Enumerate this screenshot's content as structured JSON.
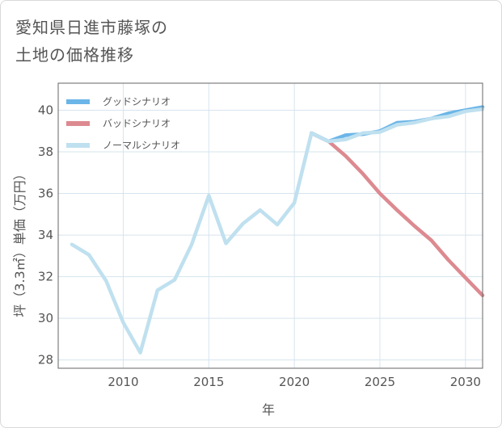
{
  "title_lines": [
    "愛知県日進市藤塚の",
    "土地の価格推移"
  ],
  "chart_data": {
    "type": "line",
    "xlabel": "年",
    "ylabel": "坪（3.3㎡）単価（万円）",
    "xlim": [
      2006.2,
      2031
    ],
    "ylim": [
      27.6,
      41.3
    ],
    "xticks": [
      2010,
      2015,
      2020,
      2025,
      2030
    ],
    "yticks": [
      28,
      30,
      32,
      34,
      36,
      38,
      40
    ],
    "legend_position": "top-left",
    "series": [
      {
        "name": "グッドシナリオ",
        "color": "#6bb5e8",
        "x": [
          2021,
          2022,
          2023,
          2024,
          2025,
          2026,
          2027,
          2028,
          2029,
          2030,
          2031
        ],
        "values": [
          38.9,
          38.5,
          38.8,
          38.85,
          39.0,
          39.4,
          39.45,
          39.6,
          39.85,
          40.0,
          40.15
        ]
      },
      {
        "name": "バッドシナリオ",
        "color": "#dc8a90",
        "x": [
          2021,
          2022,
          2023,
          2024,
          2025,
          2026,
          2027,
          2028,
          2029,
          2030,
          2031
        ],
        "values": [
          38.9,
          38.5,
          37.8,
          36.95,
          36.0,
          35.2,
          34.45,
          33.75,
          32.8,
          31.95,
          31.1
        ]
      },
      {
        "name": "ノーマルシナリオ",
        "color": "#bfe0ef",
        "x": [
          2007,
          2008,
          2009,
          2010,
          2011,
          2012,
          2013,
          2014,
          2015,
          2016,
          2017,
          2018,
          2019,
          2020,
          2021,
          2022,
          2023,
          2024,
          2025,
          2026,
          2027,
          2028,
          2029,
          2030,
          2031
        ],
        "values": [
          33.55,
          33.05,
          31.8,
          29.8,
          28.35,
          31.35,
          31.85,
          33.55,
          35.9,
          33.6,
          34.55,
          35.2,
          34.5,
          35.55,
          38.9,
          38.5,
          38.6,
          38.9,
          38.95,
          39.3,
          39.4,
          39.6,
          39.7,
          39.95,
          40.05
        ]
      }
    ]
  }
}
